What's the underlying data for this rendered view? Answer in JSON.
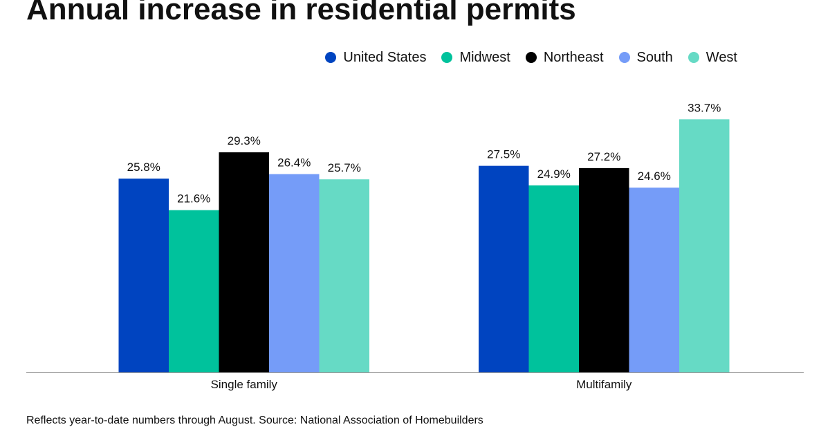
{
  "title": "Annual increase in residential permits",
  "note": "Reflects year-to-date numbers through August. Source: National Association of Homebuilders",
  "chart_data": {
    "type": "bar",
    "title": "Annual increase in residential permits",
    "xlabel": "",
    "ylabel": "",
    "categories": [
      "Single family",
      "Multifamily"
    ],
    "series": [
      {
        "name": "United States",
        "color": "#0044c0",
        "values": [
          25.8,
          27.5
        ],
        "labels": [
          "25.8%",
          "27.5%"
        ]
      },
      {
        "name": "Midwest",
        "color": "#00c29c",
        "values": [
          21.6,
          24.9
        ],
        "labels": [
          "21.6%",
          "24.9%"
        ]
      },
      {
        "name": "Northeast",
        "color": "#000000",
        "values": [
          29.3,
          27.2
        ],
        "labels": [
          "29.3%",
          "27.2%"
        ]
      },
      {
        "name": "South",
        "color": "#759cf8",
        "values": [
          26.4,
          24.6
        ],
        "labels": [
          "26.4%",
          "24.6%"
        ]
      },
      {
        "name": "West",
        "color": "#66dac5",
        "values": [
          25.7,
          33.7
        ],
        "labels": [
          "25.7%",
          "33.7%"
        ]
      }
    ],
    "ylim": [
      0,
      35
    ],
    "grid": false,
    "legend": "top-right"
  }
}
